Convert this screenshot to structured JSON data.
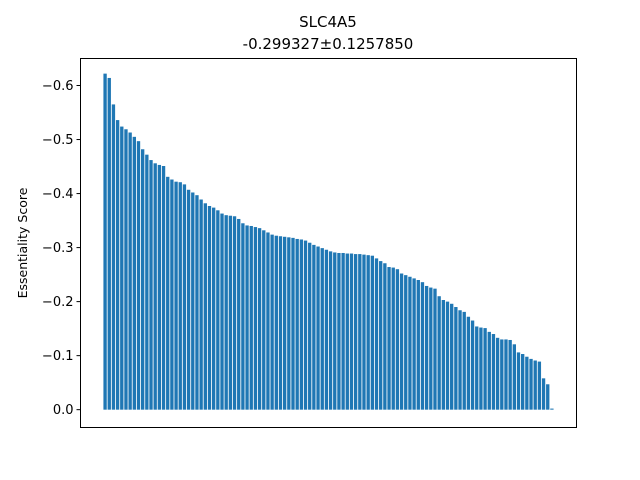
{
  "chart_data": {
    "type": "bar",
    "title": "SLC4A5",
    "subtitle": "-0.299327±0.1257850",
    "ylabel": "Essentiality Score",
    "xlabel": "",
    "x_ticks_visible": false,
    "ylim": [
      0.033,
      -0.65
    ],
    "y_inverted": true,
    "yticks": [
      0.0,
      -0.1,
      -0.2,
      -0.3,
      -0.4,
      -0.5,
      -0.6
    ],
    "ytick_labels": [
      "0.0",
      "−0.1",
      "−0.2",
      "−0.3",
      "−0.4",
      "−0.5",
      "−0.6"
    ],
    "bar_color": "#1f77b4",
    "grid": false,
    "values": [
      -0.622,
      -0.614,
      -0.565,
      -0.536,
      -0.524,
      -0.519,
      -0.513,
      -0.505,
      -0.497,
      -0.482,
      -0.472,
      -0.462,
      -0.456,
      -0.453,
      -0.451,
      -0.431,
      -0.426,
      -0.422,
      -0.421,
      -0.417,
      -0.407,
      -0.402,
      -0.397,
      -0.389,
      -0.382,
      -0.377,
      -0.374,
      -0.369,
      -0.363,
      -0.36,
      -0.359,
      -0.358,
      -0.353,
      -0.345,
      -0.341,
      -0.34,
      -0.338,
      -0.336,
      -0.332,
      -0.328,
      -0.324,
      -0.322,
      -0.321,
      -0.32,
      -0.319,
      -0.318,
      -0.316,
      -0.315,
      -0.313,
      -0.309,
      -0.305,
      -0.302,
      -0.299,
      -0.296,
      -0.293,
      -0.291,
      -0.29,
      -0.29,
      -0.289,
      -0.289,
      -0.288,
      -0.288,
      -0.287,
      -0.286,
      -0.285,
      -0.28,
      -0.275,
      -0.271,
      -0.264,
      -0.263,
      -0.26,
      -0.252,
      -0.249,
      -0.246,
      -0.243,
      -0.24,
      -0.236,
      -0.229,
      -0.226,
      -0.224,
      -0.21,
      -0.203,
      -0.2,
      -0.196,
      -0.19,
      -0.184,
      -0.181,
      -0.172,
      -0.165,
      -0.154,
      -0.152,
      -0.151,
      -0.144,
      -0.14,
      -0.133,
      -0.13,
      -0.13,
      -0.129,
      -0.121,
      -0.106,
      -0.103,
      -0.098,
      -0.094,
      -0.091,
      -0.089,
      -0.058,
      -0.047,
      -0.002
    ]
  }
}
